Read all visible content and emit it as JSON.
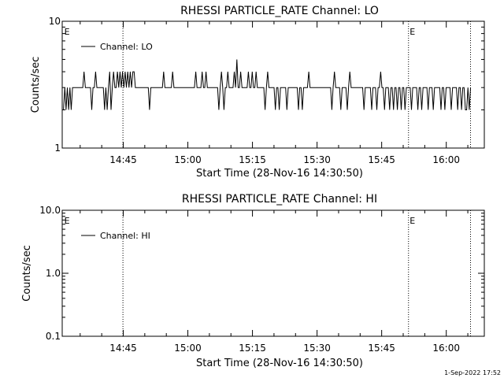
{
  "chart_data": [
    {
      "type": "line",
      "title": "RHESSI PARTICLE_RATE Channel: LO",
      "xlabel": "Start Time (28-Nov-16 14:30:50)",
      "ylabel": "Counts/sec",
      "yscale": "log",
      "ylim": [
        1,
        10
      ],
      "ytick_labels": [
        "1",
        "10"
      ],
      "x_range_minutes_after_start": [
        0,
        98
      ],
      "xtick_labels": [
        "14:45",
        "15:00",
        "15:15",
        "15:30",
        "15:45",
        "16:00"
      ],
      "xtick_minutes_after_start": [
        14.17,
        29.17,
        44.17,
        59.17,
        74.17,
        89.17
      ],
      "legend": {
        "position": "top-left",
        "entries": [
          "Channel: LO"
        ]
      },
      "event_markers": [
        {
          "label": "E",
          "minute_after_start": 0.3
        },
        {
          "label": "E",
          "minute_after_start": 80.5
        }
      ],
      "dotted_vlines_minutes": [
        14.1,
        80.4,
        94.8
      ],
      "series": [
        {
          "name": "Channel: LO",
          "values": [
            2,
            3,
            2,
            3,
            2,
            3,
            2,
            3,
            3,
            3,
            3,
            3,
            3,
            3,
            3,
            3,
            4,
            3,
            3,
            3,
            3,
            3,
            2,
            3,
            3,
            4,
            3,
            3,
            3,
            3,
            3,
            3,
            2,
            3,
            2,
            3,
            4,
            2,
            3,
            4,
            3,
            3,
            4,
            3,
            4,
            3,
            4,
            3,
            4,
            3,
            4,
            3,
            4,
            3,
            4,
            4,
            3,
            3,
            3,
            3,
            3,
            3,
            3,
            3,
            3,
            3,
            3,
            2,
            3,
            3,
            3,
            3,
            3,
            3,
            3,
            3,
            3,
            3,
            4,
            3,
            3,
            3,
            3,
            3,
            3,
            4,
            3,
            3,
            3,
            3,
            3,
            3,
            3,
            3,
            3,
            3,
            3,
            3,
            3,
            3,
            3,
            3,
            3,
            4,
            3,
            3,
            3,
            3,
            4,
            3,
            3,
            4,
            3,
            3,
            3,
            3,
            3,
            3,
            3,
            3,
            3,
            2,
            3,
            4,
            3,
            2,
            3,
            3,
            4,
            3,
            3,
            3,
            3,
            4,
            3,
            5,
            3,
            3,
            4,
            3,
            3,
            3,
            3,
            3,
            4,
            3,
            3,
            4,
            3,
            3,
            4,
            3,
            3,
            3,
            3,
            3,
            3,
            2,
            3,
            4,
            3,
            3,
            3,
            3,
            3,
            2,
            3,
            3,
            2,
            3,
            3,
            3,
            3,
            3,
            2,
            3,
            3,
            3,
            3,
            3,
            3,
            3,
            3,
            2,
            3,
            3,
            2,
            3,
            3,
            3,
            3,
            4,
            3,
            3,
            3,
            3,
            3,
            3,
            3,
            3,
            3,
            3,
            3,
            3,
            3,
            3,
            3,
            3,
            3,
            2,
            3,
            4,
            3,
            3,
            3,
            3,
            2,
            3,
            3,
            3,
            3,
            2,
            3,
            4,
            3,
            3,
            3,
            3,
            3,
            3,
            3,
            3,
            3,
            3,
            2,
            3,
            3,
            3,
            3,
            3,
            2,
            3,
            3,
            3,
            2,
            3,
            3,
            4,
            3,
            3,
            2,
            3,
            3,
            3,
            2,
            3,
            3,
            2,
            3,
            3,
            2,
            3,
            3,
            2,
            3,
            3,
            2,
            3,
            3,
            3,
            3,
            2,
            3,
            3,
            3,
            3,
            2,
            3,
            3,
            2,
            3,
            3,
            3,
            3,
            2,
            3,
            3,
            3,
            2,
            3,
            3,
            3,
            3,
            3,
            2,
            3,
            3,
            2,
            3,
            3,
            3,
            3,
            2,
            3,
            3,
            3,
            3,
            2,
            3,
            3,
            2,
            3,
            3,
            2,
            2,
            3,
            2,
            3
          ]
        }
      ]
    },
    {
      "type": "line",
      "title": "RHESSI PARTICLE_RATE Channel: HI",
      "xlabel": "Start Time (28-Nov-16 14:30:50)",
      "ylabel": "Counts/sec",
      "yscale": "log",
      "ylim": [
        0.1,
        10.0
      ],
      "ytick_labels": [
        "0.1",
        "1.0",
        "10.0"
      ],
      "x_range_minutes_after_start": [
        0,
        98
      ],
      "xtick_labels": [
        "14:45",
        "15:00",
        "15:15",
        "15:30",
        "15:45",
        "16:00"
      ],
      "xtick_minutes_after_start": [
        14.17,
        29.17,
        44.17,
        59.17,
        74.17,
        89.17
      ],
      "legend": {
        "position": "top-left",
        "entries": [
          "Channel: HI"
        ]
      },
      "event_markers": [
        {
          "label": "E",
          "minute_after_start": 0.3
        },
        {
          "label": "E",
          "minute_after_start": 80.5
        }
      ],
      "dotted_vlines_minutes": [
        14.1,
        80.4,
        94.8
      ],
      "series": [
        {
          "name": "Channel: HI",
          "values": []
        }
      ]
    }
  ],
  "footer": {
    "timestamp": "1-Sep-2022 17:52"
  }
}
